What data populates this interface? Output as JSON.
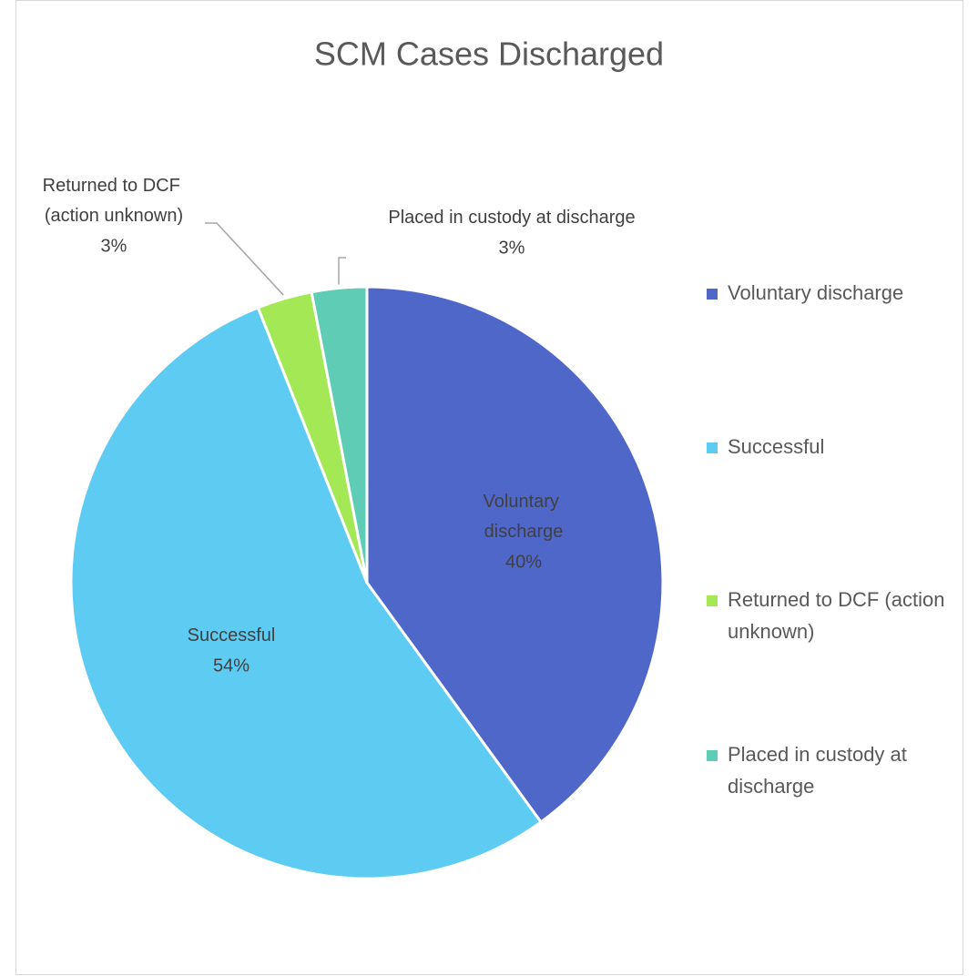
{
  "chart_data": {
    "type": "pie",
    "title": "SCM Cases Discharged",
    "categories": [
      "Voluntary discharge",
      "Successful",
      "Returned to DCF (action unknown)",
      "Placed in custody at discharge"
    ],
    "values": [
      40,
      54,
      3,
      3
    ],
    "value_labels": [
      "40%",
      "54%",
      "3%",
      "3%"
    ],
    "colors": [
      "#4f67c9",
      "#5ecbf3",
      "#a5e855",
      "#5fcdb5"
    ],
    "legend": "right"
  }
}
